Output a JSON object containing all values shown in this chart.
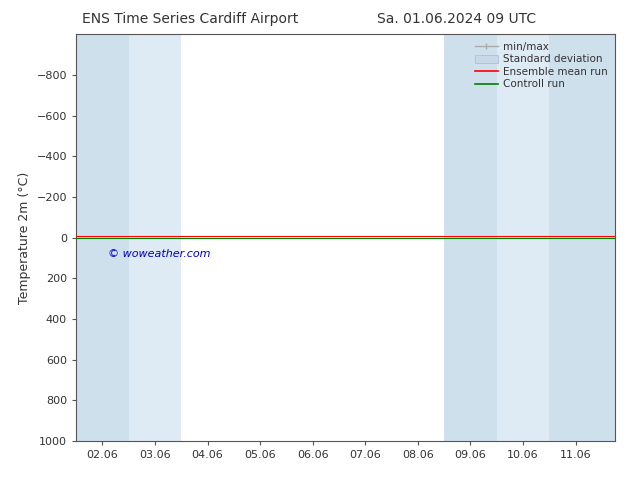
{
  "title_left": "ENS Time Series Cardiff Airport",
  "title_right": "Sa. 01.06.2024 09 UTC",
  "ylabel": "Temperature 2m (°C)",
  "xlim": [
    1.5,
    11.75
  ],
  "ylim": [
    1000,
    -1000
  ],
  "yticks": [
    -800,
    -600,
    -400,
    -200,
    0,
    200,
    400,
    600,
    800,
    1000
  ],
  "xtick_labels": [
    "02.06",
    "03.06",
    "04.06",
    "05.06",
    "06.06",
    "07.06",
    "08.06",
    "09.06",
    "10.06",
    "11.06"
  ],
  "xtick_positions": [
    2,
    3,
    4,
    5,
    6,
    7,
    8,
    9,
    10,
    11
  ],
  "shaded_bands": [
    [
      1.5,
      2.5
    ],
    [
      2.5,
      3.5
    ],
    [
      8.0,
      8.5
    ],
    [
      8.5,
      9.5
    ],
    [
      9.5,
      10.5
    ],
    [
      10.5,
      11.75
    ]
  ],
  "shaded_colors": [
    "#cfe0ed",
    "#deeaf4",
    "#ffffff",
    "#cfe0ed",
    "#deeaf4",
    "#cfe0ed"
  ],
  "line_color_red": "#ff0000",
  "line_color_green": "#008000",
  "watermark": "© woweather.com",
  "watermark_color": "#0000cc",
  "legend_labels": [
    "min/max",
    "Standard deviation",
    "Ensemble mean run",
    "Controll run"
  ],
  "legend_minmax_color": "#aaaaaa",
  "legend_std_color": "#bbccdd",
  "legend_red": "#ff0000",
  "legend_green": "#008000",
  "bg_color": "#ffffff",
  "spine_color": "#555555",
  "font_color": "#333333"
}
